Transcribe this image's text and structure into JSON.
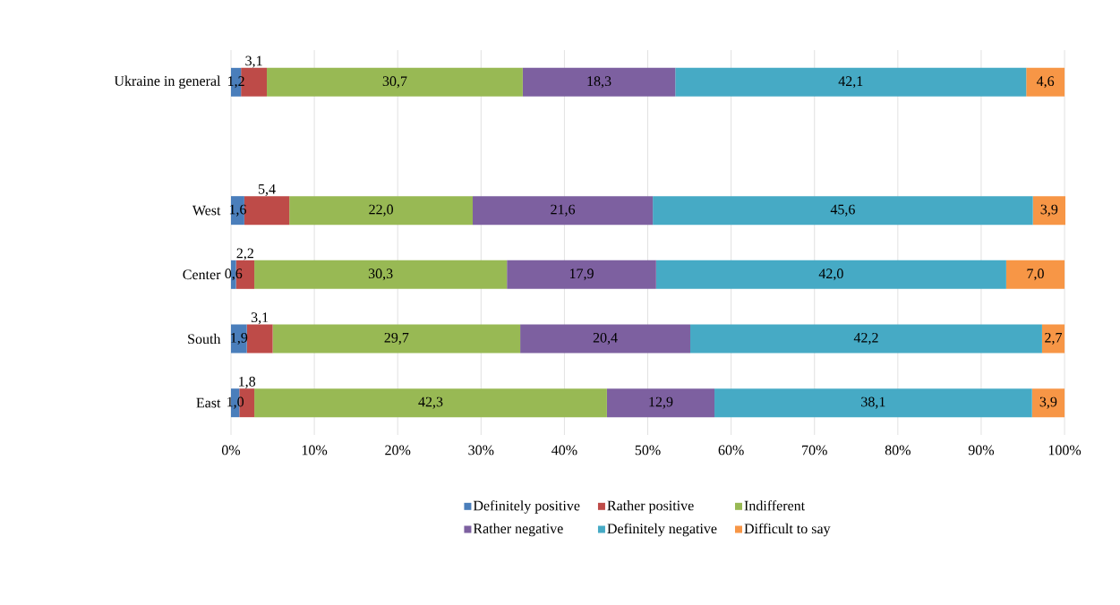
{
  "chart_data": {
    "type": "bar",
    "orientation": "horizontal",
    "stacked": true,
    "categories": [
      "Ukraine in general",
      null,
      "West",
      "Center",
      "South",
      "East"
    ],
    "series": [
      {
        "name": "Definitely positive",
        "color": "#4a7ebb",
        "values": [
          1.2,
          null,
          1.6,
          0.6,
          1.9,
          1.0
        ],
        "value_labels": [
          "1,2",
          null,
          "1,6",
          "0,6",
          "1,9",
          "1,0"
        ]
      },
      {
        "name": "Rather positive",
        "color": "#be4b48",
        "values": [
          3.1,
          null,
          5.4,
          2.2,
          3.1,
          1.8
        ],
        "value_labels": [
          "3,1",
          null,
          "5,4",
          "2,2",
          "3,1",
          "1,8"
        ]
      },
      {
        "name": "Indifferent",
        "color": "#98b954",
        "values": [
          30.7,
          null,
          22.0,
          30.3,
          29.7,
          42.3
        ],
        "value_labels": [
          "30,7",
          null,
          "22,0",
          "30,3",
          "29,7",
          "42,3"
        ]
      },
      {
        "name": "Rather negative",
        "color": "#7d60a0",
        "values": [
          18.3,
          null,
          21.6,
          17.9,
          20.4,
          12.9
        ],
        "value_labels": [
          "18,3",
          null,
          "21,6",
          "17,9",
          "20,4",
          "12,9"
        ]
      },
      {
        "name": "Definitely negative",
        "color": "#46aac5",
        "values": [
          42.1,
          null,
          45.6,
          42.0,
          42.2,
          38.1
        ],
        "value_labels": [
          "42,1",
          null,
          "45,6",
          "42,0",
          "42,2",
          "38,1"
        ]
      },
      {
        "name": "Difficult to say",
        "color": "#f79646",
        "values": [
          4.6,
          null,
          3.9,
          7.0,
          2.7,
          3.9
        ],
        "value_labels": [
          "4,6",
          null,
          "3,9",
          "7,0",
          "2,7",
          "3,9"
        ]
      }
    ],
    "xlim": [
      0,
      100.1
    ],
    "xticks": [
      {
        "value": 0,
        "label": "0%"
      },
      {
        "value": 10,
        "label": "10%"
      },
      {
        "value": 20,
        "label": "20%"
      },
      {
        "value": 30,
        "label": "30%"
      },
      {
        "value": 40,
        "label": "40%"
      },
      {
        "value": 50,
        "label": "50%"
      },
      {
        "value": 60,
        "label": "60%"
      },
      {
        "value": 70,
        "label": "70%"
      },
      {
        "value": 80,
        "label": "80%"
      },
      {
        "value": 90,
        "label": "90%"
      },
      {
        "value": 100,
        "label": "100%"
      }
    ],
    "grid": "x",
    "legend": "bottom"
  }
}
